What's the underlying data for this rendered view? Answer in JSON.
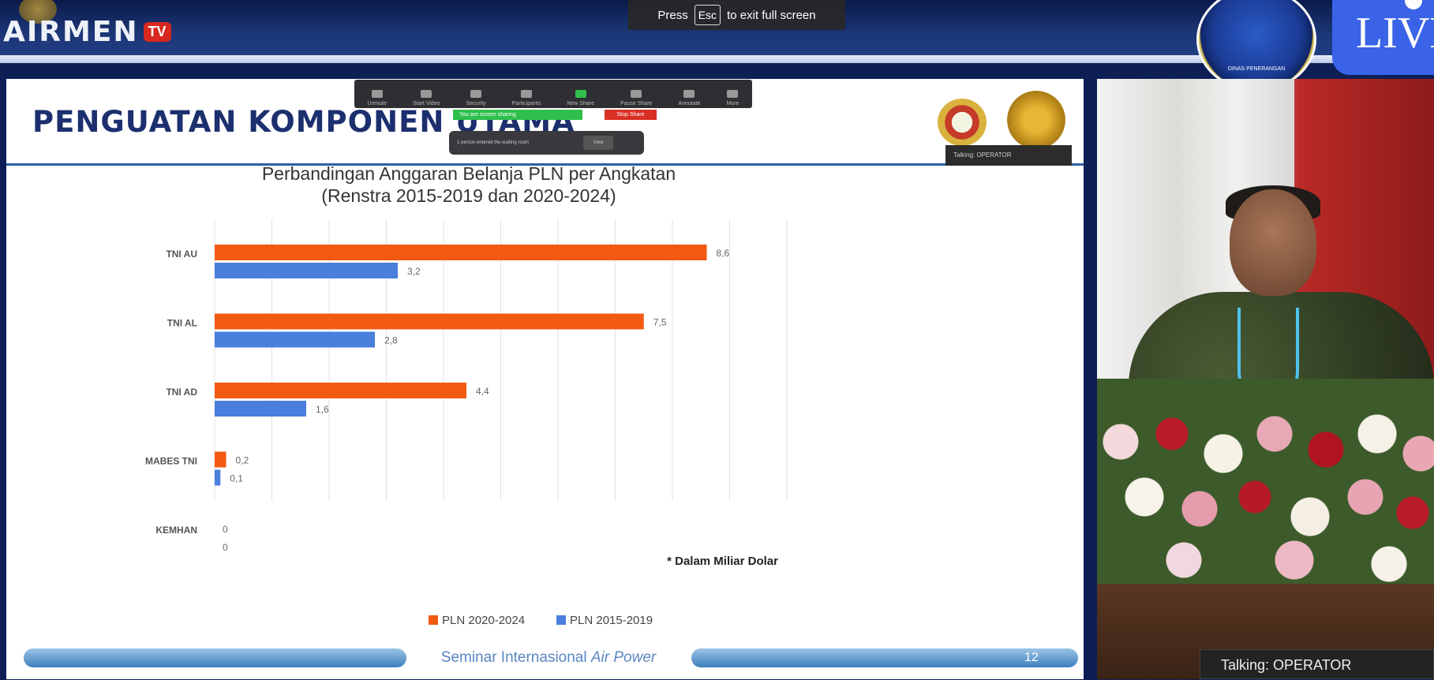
{
  "broadcast": {
    "brand": "AIRMEN",
    "brand_tv": "TV",
    "live_label": "LIVE",
    "seal_text": "DINAS PENERANGAN"
  },
  "fullscreen_banner": {
    "press": "Press",
    "key": "Esc",
    "rest": "to exit full screen"
  },
  "zoom": {
    "toolbar": [
      "Unmute",
      "Start Video",
      "Security",
      "Participants",
      "New Share",
      "Pause Share",
      "Annotate",
      "More"
    ],
    "share_status": "You are screen sharing",
    "stop_share": "Stop Share",
    "notification": "1 person entered the waiting room",
    "notification_button": "View",
    "mini_talking": "Talking: OPERATOR"
  },
  "slide": {
    "title": "PENGUATAN KOMPONEN UTAMA",
    "footer_text": "Seminar Internasional ",
    "footer_italic": "Air Power",
    "page_number": "12"
  },
  "chart_data": {
    "type": "bar",
    "orientation": "horizontal",
    "title": "Perbandingan Anggaran Belanja PLN per Angkatan",
    "subtitle": "(Renstra 2015-2019 dan 2020-2024)",
    "categories": [
      "TNI AU",
      "TNI AL",
      "TNI AD",
      "MABES TNI",
      "KEMHAN"
    ],
    "series": [
      {
        "name": "PLN 2020-2024",
        "color": "#f25a12",
        "values": [
          8.6,
          7.5,
          4.4,
          0.2,
          0
        ],
        "labels": [
          "8,6",
          "7,5",
          "4,4",
          "0,2",
          "0"
        ]
      },
      {
        "name": "PLN 2015-2019",
        "color": "#4a7fdd",
        "values": [
          3.2,
          2.8,
          1.6,
          0.1,
          0
        ],
        "labels": [
          "3,2",
          "2,8",
          "1,6",
          "0,1",
          "0"
        ]
      }
    ],
    "xlim": [
      0,
      10
    ],
    "grid": true,
    "legend_position": "bottom",
    "annotation": "* Dalam Miliar Dolar"
  },
  "speaker_panel": {
    "talking_label": "Talking: OPERATOR"
  }
}
